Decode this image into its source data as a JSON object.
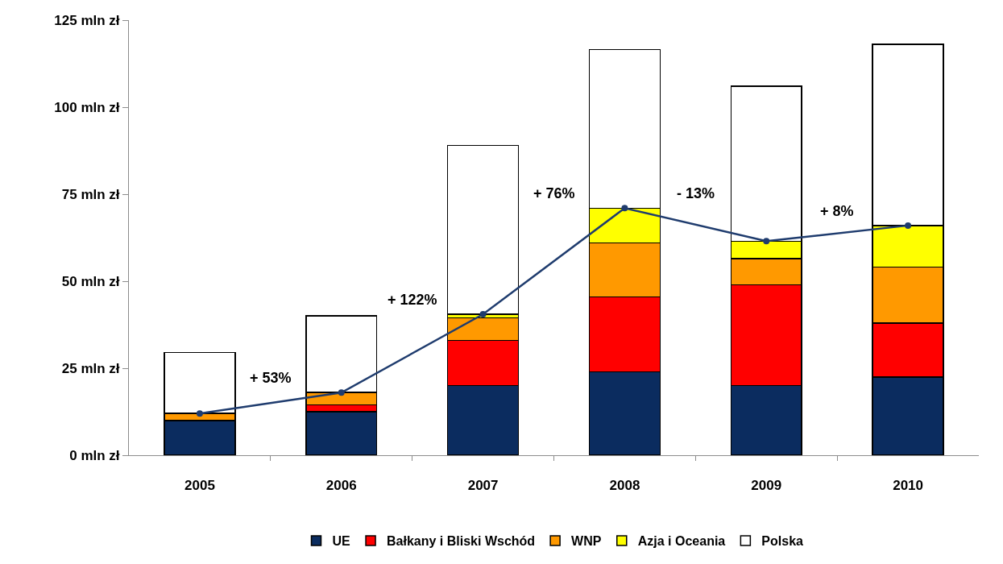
{
  "chart_data": {
    "type": "bar",
    "stacked": true,
    "categories": [
      "2005",
      "2006",
      "2007",
      "2008",
      "2009",
      "2010"
    ],
    "series": [
      {
        "name": "UE",
        "color": "#0b2c5f",
        "values": [
          10,
          12.5,
          20,
          24,
          20,
          22.5
        ]
      },
      {
        "name": "Bałkany i Bliski Wschód",
        "color": "#ff0000",
        "values": [
          null,
          2,
          13,
          21.5,
          29,
          15.5
        ]
      },
      {
        "name": "WNP",
        "color": "#ff9900",
        "values": [
          2,
          3.5,
          6.5,
          15.5,
          7.5,
          16
        ]
      },
      {
        "name": "Azja i Oceania",
        "color": "#ffff00",
        "values": [
          null,
          null,
          1,
          10,
          5,
          12
        ]
      },
      {
        "name": "Polska",
        "color": "#ffffff",
        "values": [
          17.5,
          22,
          48.5,
          45.5,
          44.5,
          52
        ]
      },
      {
        "type": "line",
        "color": "#1f3c6e",
        "values": [
          12,
          18,
          40.5,
          71,
          61.5,
          66
        ]
      }
    ],
    "ylim": [
      0,
      125
    ],
    "yticks": [
      {
        "value": 0,
        "label": "0 mln zł"
      },
      {
        "value": 25,
        "label": "25 mln zł"
      },
      {
        "value": 50,
        "label": "50 mln zł"
      },
      {
        "value": 75,
        "label": "75 mln zł"
      },
      {
        "value": 100,
        "label": "100 mln zł"
      },
      {
        "value": 125,
        "label": "125 mln zł"
      }
    ],
    "annotations": [
      "+ 53%",
      "+ 122%",
      "+ 76%",
      "- 13%",
      "+ 8%"
    ],
    "legend": "bottom",
    "marker": "circle",
    "grid": false
  }
}
